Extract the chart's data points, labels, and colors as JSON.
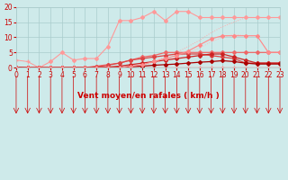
{
  "background_color": "#ceeaea",
  "grid_color": "#aacccc",
  "xlabel": "Vent moyen/en rafales ( km/h )",
  "tick_color": "#cc0000",
  "ylim": [
    0,
    20
  ],
  "xlim": [
    0,
    23
  ],
  "yticks": [
    0,
    5,
    10,
    15,
    20
  ],
  "xticks": [
    0,
    1,
    2,
    3,
    4,
    5,
    6,
    7,
    8,
    9,
    10,
    11,
    12,
    13,
    14,
    15,
    16,
    17,
    18,
    19,
    20,
    21,
    22,
    23
  ],
  "series": [
    {
      "x": [
        0,
        1,
        2,
        3,
        4,
        5,
        6,
        7,
        8,
        9,
        10,
        11,
        12,
        13,
        14,
        15,
        16,
        17,
        18,
        19,
        20,
        21,
        22,
        23
      ],
      "y": [
        0,
        0,
        0,
        0,
        0,
        0,
        0,
        0,
        0,
        0,
        0.5,
        1.0,
        2.0,
        3.5,
        5.0,
        7.0,
        9.0,
        11.5,
        13.5,
        15.0,
        16.5,
        16.5,
        16.5,
        16.5
      ],
      "color": "#ffaaaa",
      "marker": null,
      "markersize": 0,
      "linewidth": 0.7,
      "linestyle": ":"
    },
    {
      "x": [
        0,
        1,
        2,
        3,
        4,
        5,
        6,
        7,
        8,
        9,
        10,
        11,
        12,
        13,
        14,
        15,
        16,
        17,
        18,
        19,
        20,
        21,
        22,
        23
      ],
      "y": [
        0,
        0,
        0,
        0,
        0,
        0,
        0,
        0,
        0,
        0,
        0.3,
        0.8,
        1.5,
        2.5,
        3.5,
        5.0,
        6.5,
        8.5,
        10.0,
        11.0,
        10.5,
        10.5,
        5.0,
        5.0
      ],
      "color": "#ffbbbb",
      "marker": null,
      "markersize": 0,
      "linewidth": 0.7,
      "linestyle": ":"
    },
    {
      "x": [
        0,
        1,
        2,
        3,
        4,
        5,
        6,
        7,
        8,
        9,
        10,
        11,
        12,
        13,
        14,
        15,
        16,
        17,
        18,
        19,
        20,
        21,
        22,
        23
      ],
      "y": [
        2.5,
        2.0,
        0,
        0,
        0,
        0,
        0,
        0,
        0,
        0,
        0,
        0,
        0,
        0,
        0,
        0,
        0,
        0,
        0,
        0,
        0,
        0,
        0,
        0
      ],
      "color": "#ff9999",
      "marker": "+",
      "markersize": 3,
      "linewidth": 0.7,
      "linestyle": "-"
    },
    {
      "x": [
        0,
        1,
        2,
        3,
        4,
        5,
        6,
        7,
        8,
        9,
        10,
        11,
        12,
        13,
        14,
        15,
        16,
        17,
        18,
        19,
        20,
        21,
        22,
        23
      ],
      "y": [
        0,
        0,
        0,
        2.0,
        5.0,
        2.5,
        3.0,
        3.0,
        7.0,
        15.5,
        15.5,
        16.5,
        18.5,
        15.5,
        18.5,
        18.5,
        16.5,
        16.5,
        16.5,
        16.5,
        16.5,
        16.5,
        16.5,
        16.5
      ],
      "color": "#ff9999",
      "marker": "D",
      "markersize": 2,
      "linewidth": 0.8,
      "linestyle": "-"
    },
    {
      "x": [
        0,
        1,
        2,
        3,
        4,
        5,
        6,
        7,
        8,
        9,
        10,
        11,
        12,
        13,
        14,
        15,
        16,
        17,
        18,
        19,
        20,
        21,
        22,
        23
      ],
      "y": [
        0,
        0,
        0,
        0,
        0,
        0,
        0,
        0.5,
        1.0,
        1.5,
        2.5,
        3.5,
        4.0,
        5.0,
        5.0,
        5.0,
        5.0,
        5.0,
        5.0,
        5.0,
        5.0,
        5.0,
        5.0,
        5.0
      ],
      "color": "#ee6666",
      "marker": "D",
      "markersize": 2,
      "linewidth": 0.9,
      "linestyle": "-"
    },
    {
      "x": [
        0,
        1,
        2,
        3,
        4,
        5,
        6,
        7,
        8,
        9,
        10,
        11,
        12,
        13,
        14,
        15,
        16,
        17,
        18,
        19,
        20,
        21,
        22,
        23
      ],
      "y": [
        0,
        0,
        0,
        0,
        0,
        0,
        0,
        0.3,
        0.8,
        1.5,
        2.5,
        3.0,
        3.5,
        4.0,
        4.5,
        4.5,
        4.5,
        4.0,
        3.5,
        3.0,
        1.5,
        1.5,
        1.5,
        1.5
      ],
      "color": "#dd4444",
      "marker": "D",
      "markersize": 2,
      "linewidth": 0.9,
      "linestyle": "-"
    },
    {
      "x": [
        0,
        1,
        2,
        3,
        4,
        5,
        6,
        7,
        8,
        9,
        10,
        11,
        12,
        13,
        14,
        15,
        16,
        17,
        18,
        19,
        20,
        21,
        22,
        23
      ],
      "y": [
        0,
        0,
        0,
        0,
        0,
        0,
        0,
        0,
        0.2,
        0.5,
        1.0,
        1.5,
        2.0,
        2.5,
        3.0,
        3.5,
        4.0,
        4.5,
        4.5,
        3.5,
        2.5,
        1.5,
        1.5,
        1.5
      ],
      "color": "#cc2222",
      "marker": "D",
      "markersize": 2,
      "linewidth": 0.9,
      "linestyle": "-"
    },
    {
      "x": [
        0,
        1,
        2,
        3,
        4,
        5,
        6,
        7,
        8,
        9,
        10,
        11,
        12,
        13,
        14,
        15,
        16,
        17,
        18,
        19,
        20,
        21,
        22,
        23
      ],
      "y": [
        0.2,
        0,
        0,
        0,
        0,
        0,
        0,
        0,
        0,
        0.1,
        0.3,
        0.5,
        0.8,
        1.0,
        1.2,
        1.5,
        1.8,
        2.0,
        2.3,
        2.0,
        1.5,
        1.2,
        1.2,
        1.2
      ],
      "color": "#aa0000",
      "marker": "D",
      "markersize": 2,
      "linewidth": 0.9,
      "linestyle": "-"
    },
    {
      "x": [
        0,
        1,
        2,
        3,
        4,
        5,
        6,
        7,
        8,
        9,
        10,
        11,
        12,
        13,
        14,
        15,
        16,
        17,
        18,
        19,
        20,
        21,
        22,
        23
      ],
      "y": [
        0,
        0,
        0,
        0,
        0,
        0,
        0,
        0,
        0,
        0,
        0.5,
        1.0,
        2.0,
        3.0,
        4.0,
        5.5,
        7.5,
        9.5,
        10.5,
        10.5,
        10.5,
        10.5,
        5.0,
        5.0
      ],
      "color": "#ff8888",
      "marker": "D",
      "markersize": 2,
      "linewidth": 0.8,
      "linestyle": "-"
    }
  ],
  "tick_fontsize": 5.5,
  "label_fontsize": 6.5
}
